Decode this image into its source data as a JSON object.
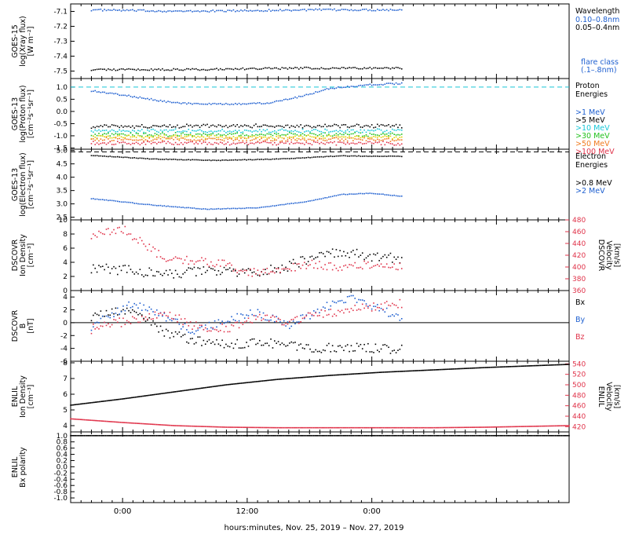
{
  "colors": {
    "black": "#000000",
    "blue": "#1e5fd0",
    "red": "#e0334a",
    "cyan": "#19c8d8",
    "green": "#22c21e",
    "yellow": "#e0d000",
    "orange": "#f07a1e",
    "teal": "#0aa0c8"
  },
  "xaxis": {
    "label": "hours:minutes, Nov. 25, 2019 – Nov. 27, 2019",
    "ticks": [
      "0:00",
      "12:00",
      "0:00"
    ]
  },
  "panels": [
    {
      "ylabel": [
        "GOES-15",
        "log(Xray flux)",
        "[W m⁻²]"
      ],
      "yticks": [
        "-7.1",
        "-7.2",
        "-7.3",
        "-7.4",
        "-7.5"
      ],
      "legend_title": [
        "Wavelength"
      ],
      "legend_items": [
        {
          "label": "0.10–0.8nm",
          "color": "blue"
        },
        {
          "label": "0.05–0.4nm",
          "color": "black"
        }
      ],
      "legend_note": [
        "flare class",
        "(.1–.8nm)"
      ]
    },
    {
      "ylabel": [
        "GOES-13",
        "log(Proton flux)",
        "[cm⁻²s⁻¹sr⁻¹]"
      ],
      "yticks": [
        "1.0",
        "0.5",
        "0.0",
        "-0.5",
        "-1.0",
        "-1.5"
      ],
      "legend_title": [
        "Proton",
        "Energies"
      ],
      "legend_items": [
        {
          "label": ">1 MeV",
          "color": "blue"
        },
        {
          "label": ">5 MeV",
          "color": "black"
        },
        {
          "label": ">10 MeV",
          "color": "cyan"
        },
        {
          "label": ">30 MeV",
          "color": "green"
        },
        {
          "label": ">50 MeV",
          "color": "orange"
        },
        {
          "label": ">100 MeV",
          "color": "red"
        }
      ]
    },
    {
      "ylabel": [
        "GOES-13",
        "log(Electron flux)",
        "[cm⁻²s⁻¹sr⁻¹]"
      ],
      "yticks": [
        "5.0",
        "4.5",
        "4.0",
        "3.5",
        "3.0",
        "2.5"
      ],
      "legend_title": [
        "Electron",
        "Energies"
      ],
      "legend_items": [
        {
          "label": ">0.8 MeV",
          "color": "black"
        },
        {
          "label": ">2 MeV",
          "color": "blue"
        }
      ]
    },
    {
      "ylabel": [
        "DSCOVR",
        "Ion Density",
        "[cm⁻³]"
      ],
      "yticks": [
        "10",
        "8",
        "6",
        "4",
        "2",
        "0"
      ],
      "ylabel_right": [
        "DSCOVR",
        "Velocity",
        "[km/s]"
      ],
      "yticks_right": [
        "480",
        "460",
        "440",
        "420",
        "400",
        "380",
        "360"
      ]
    },
    {
      "ylabel": [
        "DSCOVR",
        "B",
        "[nT]"
      ],
      "yticks": [
        "4",
        "2",
        "0",
        "-2",
        "-4",
        "-6"
      ],
      "legend_items": [
        {
          "label": "Bx",
          "color": "black"
        },
        {
          "label": "By",
          "color": "blue"
        },
        {
          "label": "Bz",
          "color": "red"
        }
      ]
    },
    {
      "ylabel": [
        "ENLIL",
        "Ion Density",
        "[cm⁻³]"
      ],
      "yticks": [
        "8",
        "7",
        "6",
        "5",
        "4"
      ],
      "ylabel_right": [
        "ENLIL",
        "Velocity",
        "[km/s]"
      ],
      "yticks_right": [
        "540",
        "520",
        "500",
        "480",
        "460",
        "440",
        "420"
      ]
    },
    {
      "ylabel": [
        "ENLIL",
        "Bx polarity"
      ],
      "yticks": [
        "1.0",
        "0.8",
        "0.6",
        "0.4",
        "0.2",
        "0.0",
        "-0.2",
        "-0.4",
        "-0.6",
        "-0.8",
        "-1.0"
      ]
    }
  ],
  "chart_data": [
    {
      "type": "scatter",
      "xlim": [
        -5,
        43
      ],
      "ylim": [
        -7.55,
        -7.05
      ],
      "series": [
        {
          "color": "blue",
          "x": [
            -3,
            6,
            18,
            27
          ],
          "y": [
            -7.09,
            -7.1,
            -7.09,
            -7.09
          ]
        },
        {
          "color": "black",
          "x": [
            -3,
            6,
            18,
            27
          ],
          "y": [
            -7.49,
            -7.49,
            -7.48,
            -7.48
          ]
        }
      ],
      "hlines": []
    },
    {
      "type": "scatter",
      "xlim": [
        -5,
        43
      ],
      "ylim": [
        -1.55,
        1.35
      ],
      "series": [
        {
          "color": "blue",
          "x": [
            -3,
            2,
            5,
            8,
            11,
            14,
            17,
            20,
            24,
            27
          ],
          "y": [
            0.85,
            0.55,
            0.35,
            0.3,
            0.3,
            0.35,
            0.6,
            0.95,
            1.1,
            1.15
          ]
        },
        {
          "color": "black",
          "x": [
            -3,
            27
          ],
          "y": [
            -0.6,
            -0.6
          ]
        },
        {
          "color": "cyan",
          "x": [
            -3,
            27
          ],
          "y": [
            -0.8,
            -0.8
          ]
        },
        {
          "color": "green",
          "x": [
            -3,
            27
          ],
          "y": [
            -0.95,
            -0.95
          ]
        },
        {
          "color": "yellow",
          "x": [
            -3,
            27
          ],
          "y": [
            -1.05,
            -1.05
          ]
        },
        {
          "color": "orange",
          "x": [
            -3,
            27
          ],
          "y": [
            -1.15,
            -1.15
          ]
        },
        {
          "color": "red",
          "x": [
            -3,
            27
          ],
          "y": [
            -1.3,
            -1.3
          ]
        }
      ],
      "hlines": [
        {
          "y": 1.0,
          "color": "cyan",
          "dash": true
        }
      ]
    },
    {
      "type": "scatter",
      "xlim": [
        -5,
        43
      ],
      "ylim": [
        2.4,
        5.05
      ],
      "series": [
        {
          "color": "black",
          "x": [
            -3,
            3,
            9,
            15,
            21,
            27
          ],
          "y": [
            4.82,
            4.68,
            4.63,
            4.68,
            4.8,
            4.78
          ]
        },
        {
          "color": "blue",
          "x": [
            -3,
            3,
            8,
            13,
            18,
            21,
            24,
            27
          ],
          "y": [
            3.2,
            2.95,
            2.8,
            2.85,
            3.1,
            3.35,
            3.4,
            3.28
          ]
        }
      ],
      "hlines": [
        {
          "y": 4.95,
          "color": "black",
          "dash": true
        }
      ]
    },
    {
      "type": "scatter",
      "xlim": [
        -5,
        43
      ],
      "ylim": [
        0,
        10
      ],
      "ylim_right": [
        360,
        480
      ],
      "series": [
        {
          "color": "black",
          "x": [
            -3,
            1,
            4,
            8,
            12,
            15,
            18,
            21,
            24,
            27
          ],
          "y": [
            3.2,
            2.8,
            2.2,
            2.8,
            2.5,
            3,
            4.5,
            5.5,
            4.8,
            4.5
          ]
        },
        {
          "color": "red",
          "axis": "right",
          "x": [
            -3,
            0,
            2,
            4,
            7,
            10,
            12,
            15,
            18,
            21,
            24,
            27
          ],
          "y": [
            455,
            465,
            440,
            415,
            410,
            405,
            390,
            395,
            405,
            400,
            405,
            402
          ]
        }
      ],
      "hlines": []
    },
    {
      "type": "scatter",
      "xlim": [
        -5,
        43
      ],
      "ylim": [
        -6,
        5
      ],
      "series": [
        {
          "color": "black",
          "x": [
            -3,
            1,
            4,
            7,
            10,
            13,
            16,
            19,
            22,
            25,
            27
          ],
          "y": [
            1,
            2,
            -1.5,
            -2.8,
            -3.5,
            -3,
            -3.5,
            -4,
            -3.8,
            -4,
            -4.2
          ]
        },
        {
          "color": "blue",
          "x": [
            -3,
            1,
            4,
            7,
            10,
            13,
            16,
            19,
            22,
            25,
            27
          ],
          "y": [
            -0.5,
            3,
            1,
            -1.5,
            0.5,
            1.5,
            -0.5,
            2,
            4,
            2,
            0.5
          ]
        },
        {
          "color": "red",
          "x": [
            -3,
            1,
            4,
            7,
            10,
            13,
            16,
            19,
            22,
            25,
            27
          ],
          "y": [
            -1,
            0.5,
            1.5,
            -0.5,
            -1,
            1,
            0,
            1.5,
            2,
            2.5,
            3
          ]
        }
      ],
      "hlines": [
        {
          "y": 0,
          "color": "black",
          "dash": false
        }
      ]
    },
    {
      "type": "scatter",
      "xlim": [
        -5,
        43
      ],
      "ylim": [
        3.6,
        8.1
      ],
      "ylim_right": [
        410,
        545
      ],
      "series": [
        {
          "color": "black",
          "x": [
            -5,
            0,
            5,
            10,
            15,
            20,
            25,
            30,
            35,
            43
          ],
          "y": [
            5.3,
            5.7,
            6.15,
            6.6,
            6.95,
            7.2,
            7.4,
            7.55,
            7.7,
            7.9
          ]
        },
        {
          "color": "red",
          "axis": "right",
          "x": [
            -5,
            0,
            5,
            10,
            15,
            20,
            25,
            30,
            35,
            43
          ],
          "y": [
            435,
            428,
            422,
            419,
            418,
            418,
            418,
            418,
            419,
            422
          ]
        }
      ],
      "hlines": []
    },
    {
      "type": "scatter",
      "xlim": [
        -5,
        43
      ],
      "ylim": [
        -1.15,
        1.12
      ],
      "series": [
        {
          "color": "black",
          "x": [
            -5,
            43
          ],
          "y": [
            1.0,
            1.0
          ]
        }
      ],
      "hlines": []
    }
  ]
}
